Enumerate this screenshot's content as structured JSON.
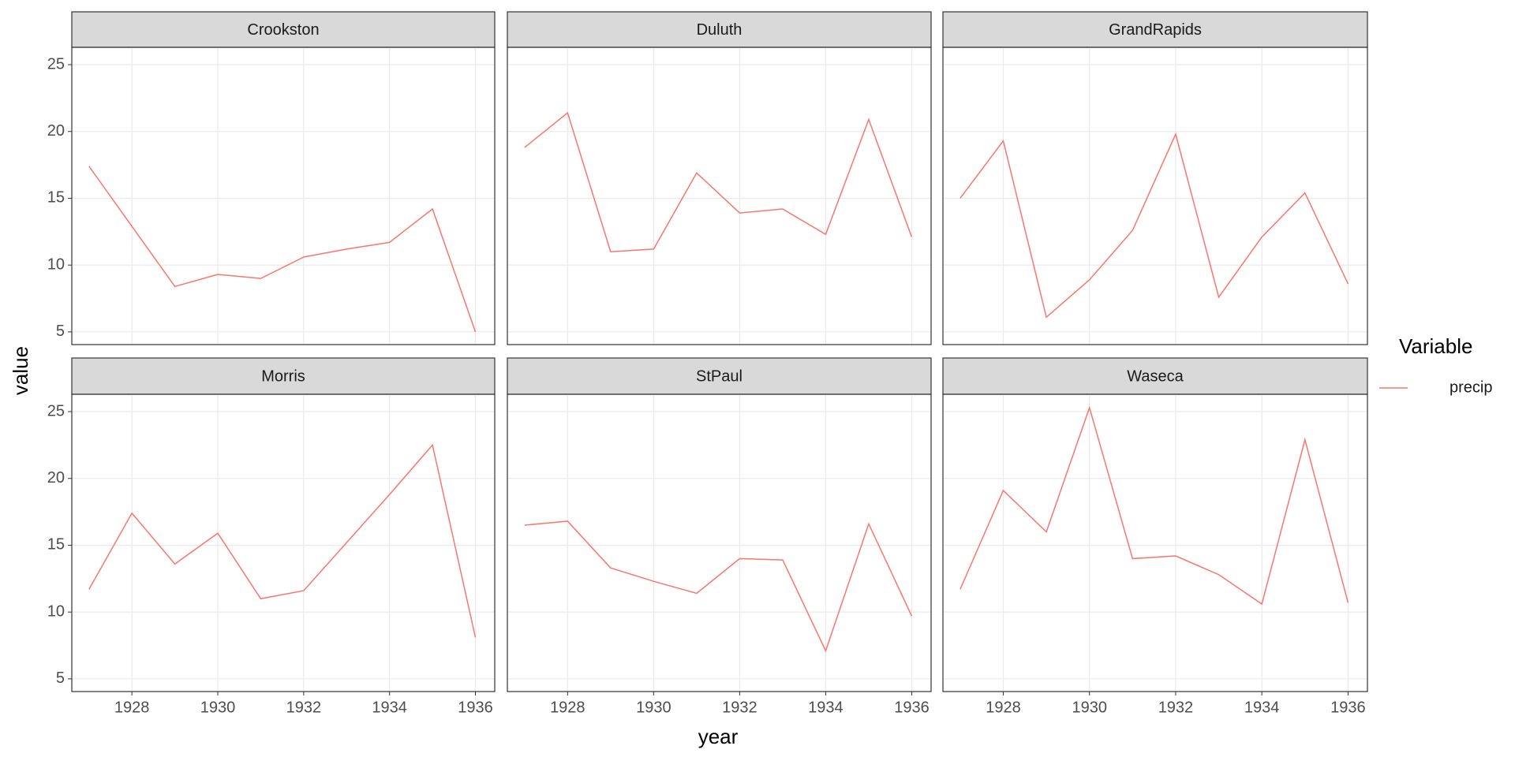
{
  "ylabel": "value",
  "xlabel": "year",
  "legend_title": "Variable",
  "chart_data": [
    {
      "type": "line",
      "title": "Crookston",
      "x": [
        1927,
        1928,
        1929,
        1930,
        1931,
        1932,
        1933,
        1934,
        1935,
        1936
      ],
      "series": [
        {
          "name": "precip",
          "color": "#F8766D",
          "values": [
            17.4,
            12.9,
            8.4,
            9.3,
            9.0,
            10.6,
            11.2,
            11.7,
            14.2,
            5.0
          ]
        }
      ],
      "xlim": [
        1926.6,
        1936.45
      ],
      "ylim": [
        4.05,
        26.3
      ],
      "xticks": [
        1928,
        1930,
        1932,
        1934,
        1936
      ],
      "yticks": [
        5,
        10,
        15,
        20,
        25
      ],
      "grid": true
    },
    {
      "type": "line",
      "title": "Duluth",
      "x": [
        1927,
        1928,
        1929,
        1930,
        1931,
        1932,
        1933,
        1934,
        1935,
        1936
      ],
      "series": [
        {
          "name": "precip",
          "color": "#F8766D",
          "values": [
            18.8,
            21.4,
            11.0,
            11.2,
            16.9,
            13.9,
            14.2,
            12.3,
            20.9,
            12.1
          ]
        }
      ],
      "xlim": [
        1926.6,
        1936.45
      ],
      "ylim": [
        4.05,
        26.3
      ],
      "xticks": [
        1928,
        1930,
        1932,
        1934,
        1936
      ],
      "yticks": [
        5,
        10,
        15,
        20,
        25
      ],
      "grid": true
    },
    {
      "type": "line",
      "title": "GrandRapids",
      "x": [
        1927,
        1928,
        1929,
        1930,
        1931,
        1932,
        1933,
        1934,
        1935,
        1936
      ],
      "series": [
        {
          "name": "precip",
          "color": "#F8766D",
          "values": [
            15.0,
            19.3,
            6.1,
            8.9,
            12.6,
            19.8,
            7.6,
            12.1,
            15.4,
            8.6
          ]
        }
      ],
      "xlim": [
        1926.6,
        1936.45
      ],
      "ylim": [
        4.05,
        26.3
      ],
      "xticks": [
        1928,
        1930,
        1932,
        1934,
        1936
      ],
      "yticks": [
        5,
        10,
        15,
        20,
        25
      ],
      "grid": true
    },
    {
      "type": "line",
      "title": "Morris",
      "x": [
        1927,
        1928,
        1929,
        1930,
        1931,
        1932,
        1933,
        1934,
        1935,
        1936
      ],
      "series": [
        {
          "name": "precip",
          "color": "#F8766D",
          "values": [
            11.7,
            17.4,
            13.6,
            15.9,
            11.0,
            11.6,
            15.2,
            18.8,
            22.5,
            8.1
          ]
        }
      ],
      "xlim": [
        1926.6,
        1936.45
      ],
      "ylim": [
        4.05,
        26.3
      ],
      "xticks": [
        1928,
        1930,
        1932,
        1934,
        1936
      ],
      "yticks": [
        5,
        10,
        15,
        20,
        25
      ],
      "grid": true
    },
    {
      "type": "line",
      "title": "StPaul",
      "x": [
        1927,
        1928,
        1929,
        1930,
        1931,
        1932,
        1933,
        1934,
        1935,
        1936
      ],
      "series": [
        {
          "name": "precip",
          "color": "#F8766D",
          "values": [
            16.5,
            16.8,
            13.3,
            12.3,
            11.4,
            14.0,
            13.9,
            7.1,
            16.6,
            9.7
          ]
        }
      ],
      "xlim": [
        1926.6,
        1936.45
      ],
      "ylim": [
        4.05,
        26.3
      ],
      "xticks": [
        1928,
        1930,
        1932,
        1934,
        1936
      ],
      "yticks": [
        5,
        10,
        15,
        20,
        25
      ],
      "grid": true
    },
    {
      "type": "line",
      "title": "Waseca",
      "x": [
        1927,
        1928,
        1929,
        1930,
        1931,
        1932,
        1933,
        1934,
        1935,
        1936
      ],
      "series": [
        {
          "name": "precip",
          "color": "#F8766D",
          "values": [
            11.7,
            19.1,
            16.0,
            25.3,
            14.0,
            14.2,
            12.8,
            10.6,
            22.9,
            10.7
          ]
        }
      ],
      "xlim": [
        1926.6,
        1936.45
      ],
      "ylim": [
        4.05,
        26.3
      ],
      "xticks": [
        1928,
        1930,
        1932,
        1934,
        1936
      ],
      "yticks": [
        5,
        10,
        15,
        20,
        25
      ],
      "grid": true
    }
  ]
}
